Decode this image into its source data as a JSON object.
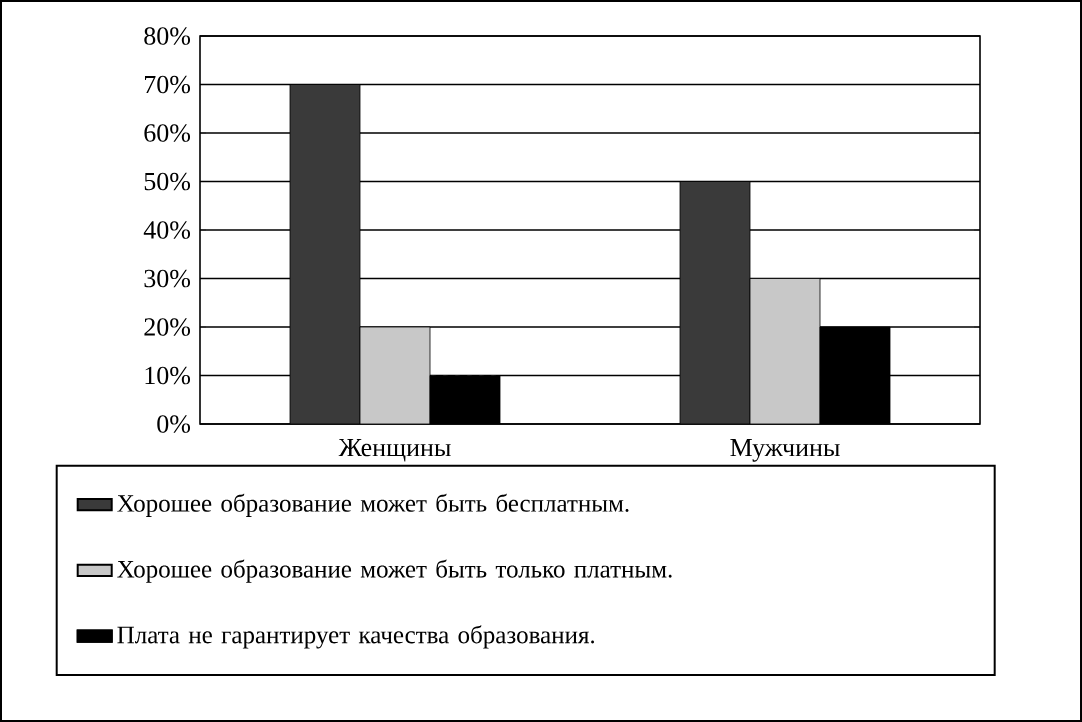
{
  "chart_data": {
    "type": "bar",
    "categories": [
      "Женщины",
      "Мужчины"
    ],
    "series": [
      {
        "name": "Хорошее образование может быть бесплатным.",
        "color": "#3a3a3a",
        "values": [
          70,
          50
        ]
      },
      {
        "name": "Хорошее образование может быть только платным.",
        "color": "#c8c8c8",
        "values": [
          20,
          30
        ]
      },
      {
        "name": "Плата не гарантирует качества образования.",
        "color": "#000000",
        "values": [
          10,
          20
        ]
      }
    ],
    "ylim": [
      0,
      80
    ],
    "yticks": [
      {
        "value": 0,
        "label": "0%"
      },
      {
        "value": 10,
        "label": "10%"
      },
      {
        "value": 20,
        "label": "20%"
      },
      {
        "value": 30,
        "label": "30%"
      },
      {
        "value": 40,
        "label": "40%"
      },
      {
        "value": 50,
        "label": "50%"
      },
      {
        "value": 60,
        "label": "60%"
      },
      {
        "value": 70,
        "label": "70%"
      },
      {
        "value": 80,
        "label": "80%"
      }
    ],
    "grid": "y",
    "legend": "bottom"
  }
}
